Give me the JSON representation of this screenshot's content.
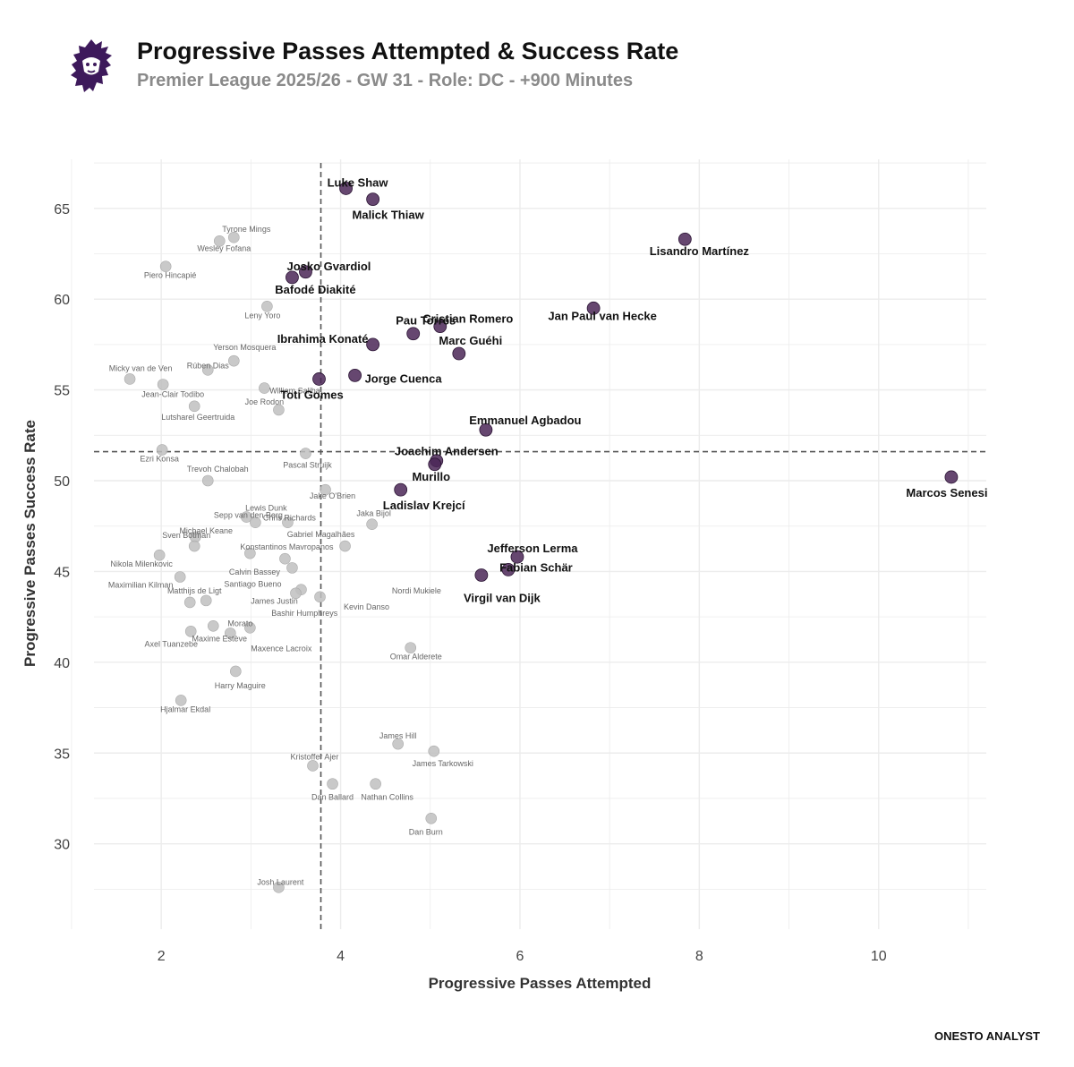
{
  "header": {
    "title": "Progressive Passes Attempted & Success Rate",
    "subtitle": "Premier League 2025/26 - GW 31 - Role: DC - +900 Minutes"
  },
  "footer": {
    "credit": "ONESTO ANALYST"
  },
  "colors": {
    "highlight": "#4b2757",
    "grey_point": "#c0c0c0",
    "grid": "#ececec",
    "brand": "#3d195b"
  },
  "chart_data": {
    "type": "scatter",
    "title": "Progressive Passes Attempted & Success Rate",
    "xlabel": "Progressive Passes Attempted",
    "ylabel": "Progressive Passes Success Rate",
    "xlim": [
      1.25,
      11.2
    ],
    "ylim": [
      25.3,
      67.7
    ],
    "xticks": [
      2,
      4,
      6,
      8,
      10
    ],
    "yticks": [
      30,
      35,
      40,
      45,
      50,
      55,
      60,
      65
    ],
    "reference_lines": {
      "x": 3.78,
      "y": 51.6
    },
    "highlighted": [
      {
        "name": "Luke Shaw",
        "x": 4.06,
        "y": 66.1
      },
      {
        "name": "Malick Thiaw",
        "x": 4.36,
        "y": 65.5
      },
      {
        "name": "Lisandro Martínez",
        "x": 7.84,
        "y": 63.3
      },
      {
        "name": "Josko Gvardiol",
        "x": 3.61,
        "y": 61.5
      },
      {
        "name": "Bafodé Diakité",
        "x": 3.46,
        "y": 61.2
      },
      {
        "name": "Jan Paul van Hecke",
        "x": 6.82,
        "y": 59.5
      },
      {
        "name": "Cristian Romero",
        "x": 5.11,
        "y": 58.5
      },
      {
        "name": "Pau Torres",
        "x": 4.81,
        "y": 58.1
      },
      {
        "name": "Ibrahima Konaté",
        "x": 4.36,
        "y": 57.5
      },
      {
        "name": "Marc Guéhi",
        "x": 5.32,
        "y": 57.0
      },
      {
        "name": "Jorge Cuenca",
        "x": 4.16,
        "y": 55.8
      },
      {
        "name": "Toti Gomes",
        "x": 3.76,
        "y": 55.6
      },
      {
        "name": "Emmanuel Agbadou",
        "x": 5.62,
        "y": 52.8
      },
      {
        "name": "Joachim Andersen",
        "x": 5.07,
        "y": 51.1
      },
      {
        "name": "Murillo",
        "x": 5.05,
        "y": 50.9
      },
      {
        "name": "Marcos Senesi",
        "x": 10.81,
        "y": 50.2
      },
      {
        "name": "Ladislav Krejcí",
        "x": 4.67,
        "y": 49.5
      },
      {
        "name": "Jefferson Lerma",
        "x": 5.97,
        "y": 45.8
      },
      {
        "name": "Fabian Schär",
        "x": 5.87,
        "y": 45.1
      },
      {
        "name": "Virgil van Dijk",
        "x": 5.57,
        "y": 44.8
      }
    ],
    "others": [
      {
        "name": "Tyrone Mings",
        "x": 2.81,
        "y": 63.4
      },
      {
        "name": "Wesley Fofana",
        "x": 2.65,
        "y": 63.2
      },
      {
        "name": "Piero Hincapié",
        "x": 2.05,
        "y": 61.8
      },
      {
        "name": "Leny Yoro",
        "x": 3.18,
        "y": 59.6
      },
      {
        "name": "Yerson Mosquera",
        "x": 2.81,
        "y": 56.6
      },
      {
        "name": "Rúben Dias",
        "x": 2.52,
        "y": 56.1
      },
      {
        "name": "Micky van de Ven",
        "x": 1.65,
        "y": 55.6
      },
      {
        "name": "Jean-Clair Todibo",
        "x": 2.02,
        "y": 55.3
      },
      {
        "name": "William Saliba",
        "x": 3.15,
        "y": 55.1
      },
      {
        "name": "Joe Rodon",
        "x": 3.31,
        "y": 53.9
      },
      {
        "name": "Lutsharel Geertruida",
        "x": 2.37,
        "y": 54.1
      },
      {
        "name": "Ezri Konsa",
        "x": 2.01,
        "y": 51.7
      },
      {
        "name": "Pascal Struijk",
        "x": 3.61,
        "y": 51.5
      },
      {
        "name": "Trevoh Chalobah",
        "x": 2.52,
        "y": 50.0
      },
      {
        "name": "Jake O'Brien",
        "x": 3.83,
        "y": 49.5
      },
      {
        "name": "Lewis Dunk",
        "x": 3.41,
        "y": 47.7
      },
      {
        "name": "Jaka Bijol",
        "x": 4.35,
        "y": 47.6
      },
      {
        "name": "Sepp van den Berg",
        "x": 3.05,
        "y": 47.7
      },
      {
        "name": "Chris Richards",
        "x": 2.95,
        "y": 48.0
      },
      {
        "name": "Sven Botman",
        "x": 2.38,
        "y": 46.9
      },
      {
        "name": "Michael Keane",
        "x": 2.37,
        "y": 46.4
      },
      {
        "name": "Gabriel Magalhães",
        "x": 4.05,
        "y": 46.4
      },
      {
        "name": "Konstantinos Mavropanos",
        "x": 3.38,
        "y": 45.7
      },
      {
        "name": "Nikola Milenkovic",
        "x": 1.98,
        "y": 45.9
      },
      {
        "name": "Calvin Bassey",
        "x": 2.99,
        "y": 46.0
      },
      {
        "name": "Santiago Bueno",
        "x": 3.46,
        "y": 45.2
      },
      {
        "name": "Maximilian Kilman",
        "x": 2.21,
        "y": 44.7
      },
      {
        "name": "Matthijs de Ligt",
        "x": 2.32,
        "y": 43.3
      },
      {
        "name": "James Justin",
        "x": 3.56,
        "y": 44.0
      },
      {
        "name": "Nordi Mukiele",
        "x": 3.5,
        "y": 43.8
      },
      {
        "name": "Kevin Danso",
        "x": 3.77,
        "y": 43.6
      },
      {
        "name": "Bashir Humphreys",
        "x": 2.5,
        "y": 43.4
      },
      {
        "name": "Morato",
        "x": 2.99,
        "y": 41.9
      },
      {
        "name": "Maxime Estève",
        "x": 2.58,
        "y": 42.0
      },
      {
        "name": "Axel Tuanzebe",
        "x": 2.33,
        "y": 41.7
      },
      {
        "name": "Maxence Lacroix",
        "x": 2.77,
        "y": 41.6
      },
      {
        "name": "Omar Alderete",
        "x": 4.78,
        "y": 40.8
      },
      {
        "name": "Harry Maguire",
        "x": 2.83,
        "y": 39.5
      },
      {
        "name": "Hjalmar Ekdal",
        "x": 2.22,
        "y": 37.9
      },
      {
        "name": "James Hill",
        "x": 4.64,
        "y": 35.5
      },
      {
        "name": "James Tarkowski",
        "x": 5.04,
        "y": 35.1
      },
      {
        "name": "Kristoffer Ajer",
        "x": 3.69,
        "y": 34.3
      },
      {
        "name": "Dan Ballard",
        "x": 3.91,
        "y": 33.3
      },
      {
        "name": "Nathan Collins",
        "x": 4.39,
        "y": 33.3
      },
      {
        "name": "Dan Burn",
        "x": 5.01,
        "y": 31.4
      },
      {
        "name": "Josh Laurent",
        "x": 3.31,
        "y": 27.6
      }
    ]
  }
}
